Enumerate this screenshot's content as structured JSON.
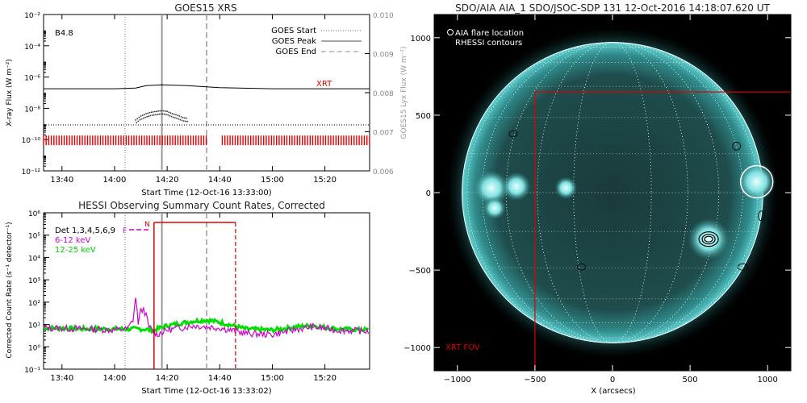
{
  "chart_data": [
    {
      "type": "line",
      "title": "GOES15 XRS",
      "xlabel": "Start Time (12-Oct-16 13:33:00)",
      "ylabel": "X-ray Flux (W m⁻²)",
      "ylabel_right": "GOES15 Lyx Flux (W m⁻²)",
      "flare_class": "B4.8",
      "xlim": [
        "13:33",
        "15:37"
      ],
      "xticks": [
        "13:40",
        "14:00",
        "14:20",
        "14:40",
        "15:00",
        "15:20"
      ],
      "ylim_log": [
        -12,
        -2
      ],
      "yticks_exp": [
        -12,
        -10,
        -8,
        -6,
        -4,
        -2
      ],
      "y2lim": [
        0.006,
        0.01
      ],
      "y2ticks": [
        "0.006",
        "0.007",
        "0.008",
        "0.009",
        "0.010"
      ],
      "legend": [
        "GOES Start",
        "GOES Peak",
        "GOES End"
      ],
      "legend_location": "top-right",
      "events": {
        "start": "14:04",
        "peak": "14:18",
        "end": "14:35"
      },
      "xrt_label": "XRT",
      "long_channel_log": [
        [
          "13:33",
          -6.75
        ],
        [
          "14:00",
          -6.75
        ],
        [
          "14:08",
          -6.7
        ],
        [
          "14:12",
          -6.55
        ],
        [
          "14:18",
          -6.5
        ],
        [
          "14:28",
          -6.55
        ],
        [
          "14:40",
          -6.68
        ],
        [
          "15:00",
          -6.75
        ],
        [
          "15:37",
          -6.75
        ]
      ],
      "short_channel_log": [
        [
          "14:08",
          -8.85
        ],
        [
          "14:10",
          -8.6
        ],
        [
          "14:12",
          -8.45
        ],
        [
          "14:14",
          -8.35
        ],
        [
          "14:16",
          -8.3
        ],
        [
          "14:18",
          -8.25
        ],
        [
          "14:20",
          -8.3
        ],
        [
          "14:22",
          -8.45
        ],
        [
          "14:24",
          -8.55
        ],
        [
          "14:26",
          -8.7
        ],
        [
          "14:28",
          -8.75
        ]
      ],
      "xrt_coverage": [
        [
          "13:33",
          "14:35"
        ],
        [
          "14:41",
          "15:37"
        ]
      ]
    },
    {
      "type": "line",
      "title": "HESSI Observing Summary Count Rates, Corrected",
      "xlabel": "Start Time (12-Oct-16 13:33:02)",
      "ylabel": "Corrected Count Rate (s⁻¹ detector⁻¹)",
      "xlim": [
        "13:33",
        "15:37"
      ],
      "xticks": [
        "13:40",
        "14:00",
        "14:20",
        "14:40",
        "15:00",
        "15:20"
      ],
      "ylim_log": [
        -1,
        6
      ],
      "yticks_exp": [
        -1,
        0,
        1,
        2,
        3,
        4,
        5,
        6
      ],
      "detectors": "Det 1,3,4,5,6,9",
      "flag_labels": [
        "F",
        "N"
      ],
      "series": [
        {
          "name": "6-12 keV",
          "color": "#d000d0",
          "values_log": [
            [
              "13:33",
              0.85
            ],
            [
              "13:50",
              0.8
            ],
            [
              "14:00",
              0.75
            ],
            [
              "14:05",
              0.8
            ],
            [
              "14:07",
              1.2
            ],
            [
              "14:08",
              2.2
            ],
            [
              "14:09",
              1.1
            ],
            [
              "14:10",
              1.6
            ],
            [
              "14:11",
              1.7
            ],
            [
              "14:12",
              1.4
            ],
            [
              "14:13",
              0.9
            ],
            [
              "14:16",
              0.55
            ],
            [
              "14:20",
              0.75
            ],
            [
              "14:30",
              0.95
            ],
            [
              "14:40",
              0.85
            ],
            [
              "14:50",
              0.6
            ],
            [
              "15:00",
              0.55
            ],
            [
              "15:10",
              0.8
            ],
            [
              "15:15",
              0.9
            ],
            [
              "15:25",
              0.75
            ],
            [
              "15:37",
              0.7
            ]
          ]
        },
        {
          "name": "12-25 keV",
          "color": "#00e000",
          "values_log": [
            [
              "13:33",
              0.85
            ],
            [
              "13:50",
              0.8
            ],
            [
              "14:00",
              0.8
            ],
            [
              "14:10",
              0.8
            ],
            [
              "14:15",
              0.75
            ],
            [
              "14:20",
              0.95
            ],
            [
              "14:30",
              1.15
            ],
            [
              "14:35",
              1.2
            ],
            [
              "14:40",
              1.1
            ],
            [
              "14:50",
              0.8
            ],
            [
              "15:00",
              0.75
            ],
            [
              "15:10",
              0.9
            ],
            [
              "15:15",
              0.95
            ],
            [
              "15:25",
              0.8
            ],
            [
              "15:37",
              0.75
            ]
          ]
        }
      ],
      "events": {
        "start": "14:04",
        "peak": "14:18",
        "end": "14:35"
      },
      "attenuator_box": [
        "14:15",
        "14:46"
      ]
    },
    {
      "type": "heatmap",
      "title": "SDO/AIA AIA_1 SDO/JSOC-SDP 131 12-Oct-2016 14:18:07.620 UT",
      "xlabel": "X (arcsecs)",
      "ylabel": "",
      "xlim": [
        -1150,
        1150
      ],
      "ylim": [
        -1150,
        1150
      ],
      "xticks": [
        -1000,
        -500,
        0,
        500,
        1000
      ],
      "yticks": [
        -1000,
        -500,
        0,
        500,
        1000
      ],
      "legend": [
        "AIA flare location",
        "RHESSI contours"
      ],
      "legend_location": "top-left",
      "solar_radius_arcsec": 970,
      "aia_flare_location": [
        930,
        70
      ],
      "rhessi_contours": [
        [
          620,
          -300
        ],
        [
          800,
          300
        ],
        [
          -640,
          380
        ],
        [
          -200,
          -480
        ]
      ],
      "xrt_fov": {
        "label": "XRT FOV",
        "x": [
          -500,
          1150
        ],
        "y": [
          -1150,
          650
        ]
      },
      "colors": {
        "disk": "#38c0c0",
        "fov": "#e00000"
      }
    }
  ]
}
